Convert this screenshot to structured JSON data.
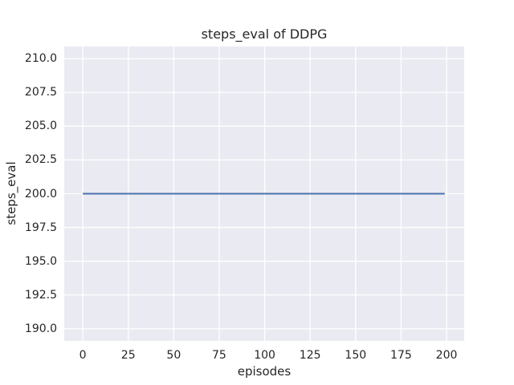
{
  "chart_data": {
    "type": "line",
    "title": "steps_eval of DDPG",
    "xlabel": "episodes",
    "ylabel": "steps_eval",
    "series": [
      {
        "name": "steps_eval",
        "x": [
          0,
          199
        ],
        "y": [
          200,
          200
        ]
      }
    ],
    "xlim": [
      -10.2,
      209.7
    ],
    "ylim": [
      189.1,
      210.9
    ],
    "xticks": [
      0,
      25,
      50,
      75,
      100,
      125,
      150,
      175,
      200
    ],
    "xtick_labels": [
      "0",
      "25",
      "50",
      "75",
      "100",
      "125",
      "150",
      "175",
      "200"
    ],
    "yticks": [
      190.0,
      192.5,
      195.0,
      197.5,
      200.0,
      202.5,
      205.0,
      207.5,
      210.0
    ],
    "ytick_labels": [
      "190.0",
      "192.5",
      "195.0",
      "197.5",
      "200.0",
      "202.5",
      "205.0",
      "207.5",
      "210.0"
    ],
    "grid": true,
    "legend": false,
    "colors": {
      "line": "#4c72b0",
      "axes_bg": "#eaeaf2",
      "grid": "#ffffff",
      "text": "#262626",
      "figure_bg": "#ffffff"
    }
  }
}
